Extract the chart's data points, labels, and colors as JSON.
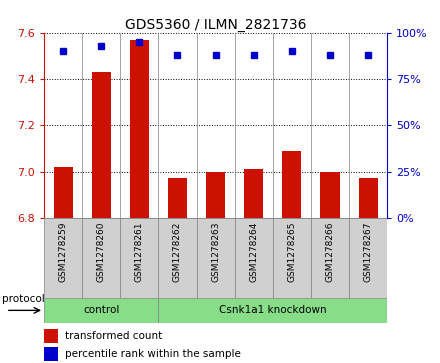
{
  "title": "GDS5360 / ILMN_2821736",
  "samples": [
    "GSM1278259",
    "GSM1278260",
    "GSM1278261",
    "GSM1278262",
    "GSM1278263",
    "GSM1278264",
    "GSM1278265",
    "GSM1278266",
    "GSM1278267"
  ],
  "bar_values": [
    7.02,
    7.43,
    7.57,
    6.97,
    7.0,
    7.01,
    7.09,
    7.0,
    6.97
  ],
  "percentile_values": [
    90,
    93,
    95,
    88,
    88,
    88,
    90,
    88,
    88
  ],
  "ylim_left": [
    6.8,
    7.6
  ],
  "ylim_right": [
    0,
    100
  ],
  "yticks_left": [
    6.8,
    7.0,
    7.2,
    7.4,
    7.6
  ],
  "yticks_right": [
    0,
    25,
    50,
    75,
    100
  ],
  "ytick_labels_right": [
    "0%",
    "25%",
    "50%",
    "75%",
    "100%"
  ],
  "bar_color": "#cc1100",
  "dot_color": "#0000cc",
  "bar_bottom": 6.8,
  "control_count": 3,
  "control_label": "control",
  "treatment_label": "Csnk1a1 knockdown",
  "protocol_label": "protocol",
  "legend_bar_label": "transformed count",
  "legend_dot_label": "percentile rank within the sample",
  "plot_bg": "#ffffff",
  "sample_cell_bg": "#d0d0d0",
  "group_bg": "#88dd88",
  "left_axis_color": "#cc1100",
  "right_axis_color": "#0000cc",
  "title_color": "#000000",
  "title_fontsize": 10
}
